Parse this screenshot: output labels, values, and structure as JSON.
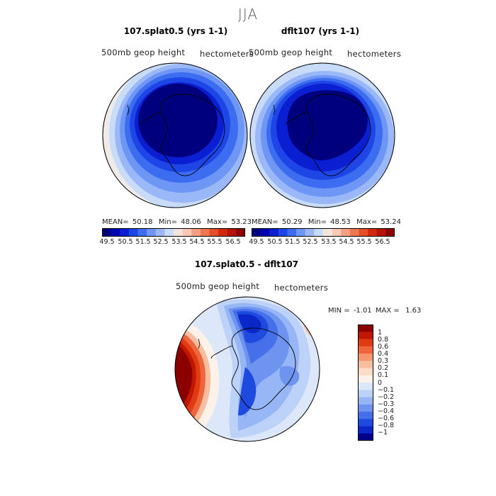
{
  "title": "JJA",
  "panels": [
    {
      "title": "107.splat0.5 (yrs 1-1)",
      "variable": "500mb geop height",
      "units": "hectometers",
      "stats": {
        "mean_label": "MEAN=",
        "mean": "50.18",
        "min_label": "Min=",
        "min": "48.06",
        "max_label": "Max=",
        "max": "53.23"
      }
    },
    {
      "title": "dflt107 (yrs 1-1)",
      "variable": "500mb geop height",
      "units": "hectometers",
      "stats": {
        "mean_label": "MEAN=",
        "mean": "50.29",
        "min_label": "Min=",
        "min": "48.53",
        "max_label": "Max=",
        "max": "53.24"
      }
    },
    {
      "title": "107.splat0.5 - dflt107",
      "variable": "500mb geop height",
      "units": "hectometers",
      "stats": {
        "min_label": "MIN =",
        "min": "-1.01",
        "max_label": "MAX =",
        "max": "1.63"
      }
    }
  ],
  "colorbar_top": {
    "ticks": [
      "49.5",
      "50.5",
      "51.5",
      "52.5",
      "53.5",
      "54.5",
      "55.5",
      "56.5"
    ],
    "colors": [
      "#00007f",
      "#0000b3",
      "#0a1ed2",
      "#1e46e6",
      "#3c6cf0",
      "#6e96f5",
      "#9ab8f8",
      "#c8dcfa",
      "#f5e6dc",
      "#fac8b4",
      "#f5a082",
      "#f07850",
      "#e64e28",
      "#d22810",
      "#b41400",
      "#8c0000"
    ]
  },
  "colorbar_diff": {
    "ticks": [
      "1",
      "0.8",
      "0.6",
      "0.4",
      "0.3",
      "0.2",
      "0.1",
      "0",
      "−0.1",
      "−0.2",
      "−0.3",
      "−0.4",
      "−0.6",
      "−0.8",
      "−1"
    ],
    "colors": [
      "#8c0000",
      "#c01800",
      "#e03c14",
      "#f0643c",
      "#f5966e",
      "#f8bea0",
      "#fbdcc8",
      "#fdf2ea",
      "#dce8fa",
      "#bcd2f8",
      "#96b6f5",
      "#6e94f0",
      "#4670ea",
      "#1e4ae0",
      "#0a28c8",
      "#00008c"
    ]
  },
  "chart_data": {
    "type": "heatmap",
    "title": "JJA",
    "subplots": [
      {
        "title": "107.splat0.5 (yrs 1-1)",
        "field": "500mb geop height",
        "units": "hectometers",
        "projection": "south polar stereographic",
        "mean": 50.18,
        "min": 48.06,
        "max": 53.23,
        "contour_levels": [
          49.5,
          50.5,
          51.5,
          52.5,
          53.5,
          54.5,
          55.5,
          56.5
        ]
      },
      {
        "title": "dflt107 (yrs 1-1)",
        "field": "500mb geop height",
        "units": "hectometers",
        "projection": "south polar stereographic",
        "mean": 50.29,
        "min": 48.53,
        "max": 53.24,
        "contour_levels": [
          49.5,
          50.5,
          51.5,
          52.5,
          53.5,
          54.5,
          55.5,
          56.5
        ]
      },
      {
        "title": "107.splat0.5 - dflt107",
        "field": "500mb geop height",
        "units": "hectometers",
        "projection": "south polar stereographic",
        "min": -1.01,
        "max": 1.63,
        "contour_levels": [
          -1,
          -0.8,
          -0.6,
          -0.4,
          -0.3,
          -0.2,
          -0.1,
          0,
          0.1,
          0.2,
          0.3,
          0.4,
          0.6,
          0.8,
          1
        ]
      }
    ]
  }
}
